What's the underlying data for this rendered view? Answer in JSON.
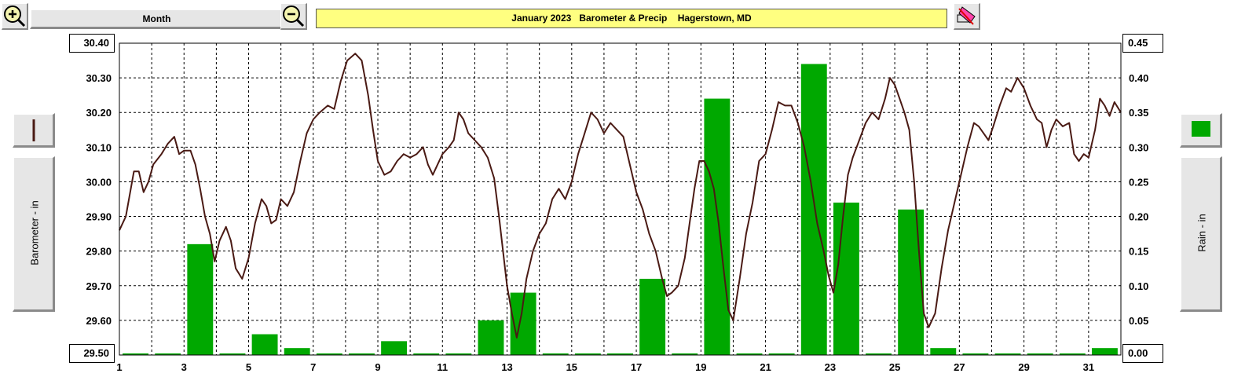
{
  "toolbar": {
    "zoom_in_icon": "zoom-in-icon",
    "zoom_out_icon": "zoom-out-icon",
    "period_label": "Month",
    "title": "January 2023   Barometer & Precip    Hagerstown, MD",
    "print_icon": "print-icon"
  },
  "left_panel": {
    "legend_icon": "barometer-line-swatch-icon",
    "axis_label": "Barometer - in",
    "axis_min_label": "29.50",
    "axis_max_label": "30.40"
  },
  "right_panel": {
    "legend_icon": "rain-bar-swatch-icon",
    "axis_label": "Rain - in",
    "axis_min_label": "0.00",
    "axis_max_label": "0.45"
  },
  "colors": {
    "barometer_line": "#4a1a14",
    "rain_bar": "#00a800",
    "title_bg": "#ffff80",
    "grid": "#000000"
  },
  "chart_data": {
    "type": "bar+line",
    "title": "January 2023   Barometer & Precip    Hagerstown, MD",
    "x_ticks": [
      "1",
      "3",
      "5",
      "7",
      "9",
      "11",
      "13",
      "15",
      "17",
      "19",
      "21",
      "23",
      "25",
      "27",
      "29",
      "31"
    ],
    "xlim": [
      1,
      32
    ],
    "left_axis": {
      "label": "Barometer - in",
      "ylim": [
        29.5,
        30.4
      ],
      "ticks": [
        "29.50",
        "29.60",
        "29.70",
        "29.80",
        "29.90",
        "30.00",
        "30.10",
        "30.20",
        "30.30",
        "30.40"
      ]
    },
    "right_axis": {
      "label": "Rain - in",
      "ylim": [
        0,
        0.45
      ],
      "ticks": [
        "0.00",
        "0.05",
        "0.10",
        "0.15",
        "0.20",
        "0.25",
        "0.30",
        "0.35",
        "0.40",
        "0.45"
      ]
    },
    "rain_series": {
      "name": "Rain - in",
      "days": [
        1,
        2,
        3,
        4,
        5,
        6,
        7,
        8,
        9,
        10,
        11,
        12,
        13,
        14,
        15,
        16,
        17,
        18,
        19,
        20,
        21,
        22,
        23,
        24,
        25,
        26,
        27,
        28,
        29,
        30,
        31
      ],
      "values": [
        0,
        0,
        0.16,
        0,
        0.03,
        0.01,
        0,
        0,
        0.02,
        0,
        0,
        0.05,
        0.09,
        0,
        0,
        0,
        0.11,
        0,
        0.37,
        0,
        0,
        0.42,
        0.22,
        0,
        0.21,
        0.01,
        0,
        0,
        0,
        0,
        0.01
      ]
    },
    "barometer_series": {
      "name": "Barometer - in",
      "points": [
        [
          1.0,
          29.86
        ],
        [
          1.2,
          29.9
        ],
        [
          1.45,
          30.03
        ],
        [
          1.6,
          30.03
        ],
        [
          1.75,
          29.97
        ],
        [
          1.9,
          30.0
        ],
        [
          2.05,
          30.05
        ],
        [
          2.3,
          30.08
        ],
        [
          2.5,
          30.11
        ],
        [
          2.7,
          30.13
        ],
        [
          2.85,
          30.08
        ],
        [
          3.0,
          30.09
        ],
        [
          3.2,
          30.09
        ],
        [
          3.35,
          30.05
        ],
        [
          3.5,
          29.98
        ],
        [
          3.65,
          29.9
        ],
        [
          3.8,
          29.85
        ],
        [
          3.95,
          29.77
        ],
        [
          4.1,
          29.83
        ],
        [
          4.3,
          29.87
        ],
        [
          4.45,
          29.83
        ],
        [
          4.6,
          29.75
        ],
        [
          4.8,
          29.72
        ],
        [
          5.0,
          29.78
        ],
        [
          5.2,
          29.88
        ],
        [
          5.4,
          29.95
        ],
        [
          5.55,
          29.93
        ],
        [
          5.7,
          29.88
        ],
        [
          5.85,
          29.89
        ],
        [
          6.0,
          29.95
        ],
        [
          6.2,
          29.93
        ],
        [
          6.4,
          29.97
        ],
        [
          6.6,
          30.06
        ],
        [
          6.8,
          30.14
        ],
        [
          7.0,
          30.18
        ],
        [
          7.2,
          30.2
        ],
        [
          7.45,
          30.22
        ],
        [
          7.65,
          30.21
        ],
        [
          7.85,
          30.29
        ],
        [
          8.05,
          30.35
        ],
        [
          8.3,
          30.37
        ],
        [
          8.5,
          30.35
        ],
        [
          8.7,
          30.25
        ],
        [
          8.85,
          30.15
        ],
        [
          9.0,
          30.06
        ],
        [
          9.2,
          30.02
        ],
        [
          9.4,
          30.03
        ],
        [
          9.6,
          30.06
        ],
        [
          9.8,
          30.08
        ],
        [
          10.0,
          30.07
        ],
        [
          10.2,
          30.08
        ],
        [
          10.4,
          30.1
        ],
        [
          10.55,
          30.05
        ],
        [
          10.7,
          30.02
        ],
        [
          10.85,
          30.05
        ],
        [
          11.0,
          30.08
        ],
        [
          11.2,
          30.1
        ],
        [
          11.35,
          30.12
        ],
        [
          11.5,
          30.2
        ],
        [
          11.65,
          30.18
        ],
        [
          11.8,
          30.14
        ],
        [
          12.0,
          30.12
        ],
        [
          12.2,
          30.1
        ],
        [
          12.4,
          30.07
        ],
        [
          12.6,
          30.01
        ],
        [
          12.75,
          29.9
        ],
        [
          12.9,
          29.78
        ],
        [
          13.0,
          29.7
        ],
        [
          13.15,
          29.62
        ],
        [
          13.3,
          29.55
        ],
        [
          13.45,
          29.62
        ],
        [
          13.6,
          29.72
        ],
        [
          13.8,
          29.8
        ],
        [
          14.0,
          29.85
        ],
        [
          14.2,
          29.88
        ],
        [
          14.4,
          29.95
        ],
        [
          14.6,
          29.98
        ],
        [
          14.8,
          29.95
        ],
        [
          15.0,
          30.0
        ],
        [
          15.2,
          30.08
        ],
        [
          15.4,
          30.14
        ],
        [
          15.6,
          30.2
        ],
        [
          15.8,
          30.18
        ],
        [
          16.0,
          30.14
        ],
        [
          16.2,
          30.17
        ],
        [
          16.4,
          30.15
        ],
        [
          16.6,
          30.13
        ],
        [
          16.8,
          30.05
        ],
        [
          17.0,
          29.97
        ],
        [
          17.2,
          29.92
        ],
        [
          17.4,
          29.85
        ],
        [
          17.6,
          29.8
        ],
        [
          17.8,
          29.72
        ],
        [
          17.95,
          29.67
        ],
        [
          18.1,
          29.68
        ],
        [
          18.3,
          29.7
        ],
        [
          18.5,
          29.78
        ],
        [
          18.65,
          29.88
        ],
        [
          18.8,
          29.98
        ],
        [
          18.95,
          30.06
        ],
        [
          19.1,
          30.06
        ],
        [
          19.25,
          30.03
        ],
        [
          19.4,
          29.98
        ],
        [
          19.55,
          29.88
        ],
        [
          19.7,
          29.75
        ],
        [
          19.85,
          29.63
        ],
        [
          20.0,
          29.6
        ],
        [
          20.2,
          29.72
        ],
        [
          20.4,
          29.85
        ],
        [
          20.6,
          29.94
        ],
        [
          20.8,
          30.06
        ],
        [
          21.0,
          30.08
        ],
        [
          21.2,
          30.15
        ],
        [
          21.4,
          30.23
        ],
        [
          21.6,
          30.22
        ],
        [
          21.8,
          30.22
        ],
        [
          22.0,
          30.17
        ],
        [
          22.2,
          30.1
        ],
        [
          22.4,
          30.0
        ],
        [
          22.6,
          29.88
        ],
        [
          22.8,
          29.8
        ],
        [
          22.95,
          29.73
        ],
        [
          23.1,
          29.68
        ],
        [
          23.25,
          29.76
        ],
        [
          23.4,
          29.9
        ],
        [
          23.55,
          30.02
        ],
        [
          23.7,
          30.07
        ],
        [
          23.9,
          30.12
        ],
        [
          24.1,
          30.17
        ],
        [
          24.3,
          30.2
        ],
        [
          24.5,
          30.18
        ],
        [
          24.7,
          30.24
        ],
        [
          24.85,
          30.3
        ],
        [
          25.0,
          30.28
        ],
        [
          25.15,
          30.24
        ],
        [
          25.3,
          30.2
        ],
        [
          25.45,
          30.15
        ],
        [
          25.6,
          30.0
        ],
        [
          25.75,
          29.8
        ],
        [
          25.9,
          29.62
        ],
        [
          26.05,
          29.58
        ],
        [
          26.25,
          29.62
        ],
        [
          26.45,
          29.75
        ],
        [
          26.65,
          29.86
        ],
        [
          26.85,
          29.94
        ],
        [
          27.05,
          30.02
        ],
        [
          27.25,
          30.1
        ],
        [
          27.45,
          30.17
        ],
        [
          27.6,
          30.16
        ],
        [
          27.75,
          30.14
        ],
        [
          27.9,
          30.12
        ],
        [
          28.05,
          30.16
        ],
        [
          28.25,
          30.22
        ],
        [
          28.45,
          30.27
        ],
        [
          28.6,
          30.26
        ],
        [
          28.8,
          30.3
        ],
        [
          29.0,
          30.27
        ],
        [
          29.2,
          30.22
        ],
        [
          29.4,
          30.18
        ],
        [
          29.55,
          30.17
        ],
        [
          29.7,
          30.1
        ],
        [
          29.85,
          30.15
        ],
        [
          30.0,
          30.18
        ],
        [
          30.2,
          30.16
        ],
        [
          30.4,
          30.17
        ],
        [
          30.55,
          30.08
        ],
        [
          30.7,
          30.06
        ],
        [
          30.85,
          30.08
        ],
        [
          31.0,
          30.07
        ],
        [
          31.2,
          30.15
        ],
        [
          31.35,
          30.24
        ],
        [
          31.5,
          30.22
        ],
        [
          31.65,
          30.19
        ],
        [
          31.8,
          30.23
        ],
        [
          32.0,
          30.2
        ]
      ]
    }
  }
}
